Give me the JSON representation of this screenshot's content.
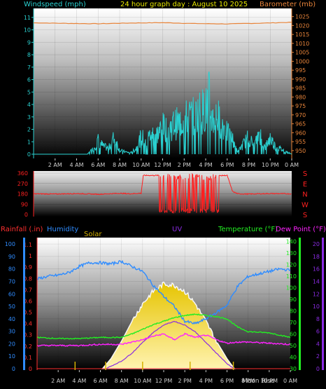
{
  "header": {
    "left": "Windspeed (mph)",
    "center": "24 hour graph day : August 10 2025",
    "right": "Barometer (mb)"
  },
  "colors": {
    "wind": "#2ad0d0",
    "baro": "#e8843a",
    "dir": "#ff2020",
    "rain": "#ff3030",
    "humidity": "#2f8cff",
    "solar": "#d4b000",
    "uv": "#8a2be2",
    "temp": "#22ee22",
    "dew": "#ff22ff",
    "header_title": "#e8e800"
  },
  "x_tick_labels": [
    "2 AM",
    "4 AM",
    "6 AM",
    "8 AM",
    "10 AM",
    "12 PM",
    "2 PM",
    "4 PM",
    "6 PM",
    "8 PM",
    "10 PM",
    "0 AM"
  ],
  "x_tick_labels_bottom": [
    "2 AM",
    "4 AM",
    "6 AM",
    "8 AM",
    "10 AM",
    "12 PM",
    "2 PM",
    "4 PM",
    "6 PM",
    "8 PM",
    "10 PM",
    "0 AM"
  ],
  "moon_label": "Moon Rise",
  "wind_ticks": [
    "0",
    "1",
    "2",
    "3",
    "4",
    "5",
    "6",
    "7",
    "8",
    "9",
    "10",
    "11"
  ],
  "baro_ticks": [
    "950",
    "955",
    "960",
    "965",
    "970",
    "975",
    "980",
    "985",
    "990",
    "995",
    "1000",
    "1005",
    "1010",
    "1015",
    "1020",
    "1025"
  ],
  "dir_ticks": [
    "0",
    "90",
    "180",
    "270",
    "360"
  ],
  "dir_letters": [
    "S",
    "E",
    "N",
    "W",
    "S"
  ],
  "legend": {
    "rain": "Rainfall (.in)",
    "humidity": "Humidity",
    "solar": "Solar",
    "uv": "UV",
    "temp": "Temperature (°F)",
    "dew": "Dew Point (°F)"
  },
  "humidity_ticks": [
    "0",
    "10",
    "20",
    "30",
    "40",
    "50",
    "60",
    "70",
    "80",
    "90",
    "100"
  ],
  "rain_ticks": [
    "0",
    "0.1",
    "0.2",
    "0.3",
    "0.4",
    "0.5",
    "0.6",
    "0.7",
    "0.8",
    "0.9",
    "1",
    "1.1"
  ],
  "temp_ticks": [
    "30",
    "40",
    "50",
    "60",
    "70",
    "80",
    "90",
    "100",
    "110",
    "120",
    "130",
    "140"
  ],
  "uv_ticks": [
    "0",
    "2",
    "4",
    "6",
    "8",
    "10",
    "12",
    "14",
    "16",
    "18",
    "20"
  ],
  "chart_data": [
    {
      "type": "line",
      "x_unit": "hour",
      "xlim": [
        0,
        24
      ],
      "series": [
        {
          "name": "Windspeed (mph)",
          "axis": "left",
          "ylim": [
            0,
            11.5
          ],
          "x": [
            0,
            1,
            2,
            3,
            4,
            5,
            5.5,
            6,
            6.5,
            7,
            7.5,
            8,
            8.5,
            9,
            9.5,
            10,
            10.5,
            11,
            11.5,
            12,
            12.5,
            13,
            13.5,
            14,
            14.5,
            15,
            15.5,
            16,
            16.3,
            16.6,
            17,
            17.5,
            18,
            18.5,
            19,
            19.5,
            20,
            20.5,
            21,
            21.5,
            22,
            22.5,
            23,
            23.5,
            24
          ],
          "y": [
            0,
            0,
            0,
            0,
            0,
            0,
            0.4,
            1.1,
            0.6,
            0.5,
            1.4,
            0.3,
            0.2,
            0.1,
            0.4,
            1.4,
            1.1,
            1.8,
            1.6,
            2.2,
            2.0,
            2.4,
            2.5,
            2.8,
            3.0,
            3.0,
            3.5,
            3.5,
            4.5,
            2.8,
            3.1,
            2.6,
            1.7,
            1.2,
            0.2,
            0.8,
            1.4,
            0.6,
            1.8,
            0.5,
            1.3,
            0.6,
            0.4,
            0.2,
            0
          ]
        },
        {
          "name": "Barometer (mb)",
          "axis": "right",
          "ylim": [
            948,
            1028
          ],
          "x": [
            0,
            3,
            6,
            9,
            12,
            15,
            18,
            21,
            24
          ],
          "y": [
            1021.5,
            1021.2,
            1021.0,
            1021.4,
            1021.6,
            1021.1,
            1020.9,
            1021.3,
            1021.8
          ]
        }
      ]
    },
    {
      "type": "line",
      "name": "Wind Direction",
      "x_unit": "hour",
      "xlim": [
        0,
        24
      ],
      "ylim": [
        0,
        360
      ],
      "x": [
        0,
        2,
        4,
        6,
        8,
        9,
        10,
        10.2,
        12,
        14,
        16,
        17,
        18,
        18.5,
        19,
        20,
        22,
        24
      ],
      "y": [
        180,
        178,
        182,
        176,
        184,
        180,
        185,
        340,
        340,
        345,
        340,
        338,
        340,
        200,
        180,
        178,
        182,
        180
      ],
      "oscillation_range_hours": [
        11.7,
        17.3
      ],
      "oscillation_range_deg": [
        0,
        355
      ]
    },
    {
      "type": "area",
      "x_unit": "hour",
      "xlim": [
        0,
        24
      ],
      "series": [
        {
          "name": "Humidity",
          "axis": "humidity",
          "ylim": [
            0,
            100
          ],
          "x": [
            0,
            1,
            2,
            3,
            4,
            5,
            6,
            7,
            8,
            9,
            10,
            11,
            12,
            13,
            14,
            15,
            16,
            17,
            18,
            19,
            20,
            21,
            22,
            23,
            24
          ],
          "y": [
            72,
            74,
            75,
            77,
            82,
            85,
            85,
            84,
            86,
            82,
            78,
            67,
            58,
            50,
            38,
            36,
            40,
            45,
            51,
            66,
            74,
            76,
            78,
            80,
            79
          ]
        },
        {
          "name": "Temperature (°F)",
          "axis": "temp",
          "ylim": [
            30,
            142
          ],
          "x": [
            0,
            2,
            4,
            6,
            8,
            9,
            10,
            11,
            12,
            13,
            14,
            15,
            16,
            17,
            18,
            19,
            20,
            22,
            24
          ],
          "y": [
            57,
            56,
            56,
            57,
            57,
            60,
            64,
            68,
            71,
            74,
            76,
            77,
            76,
            75,
            73,
            66,
            62,
            61,
            57
          ]
        },
        {
          "name": "Dew Point (°F)",
          "axis": "temp",
          "ylim": [
            30,
            142
          ],
          "x": [
            0,
            2,
            4,
            6,
            8,
            10,
            11,
            12,
            13,
            14,
            15,
            16,
            17,
            18,
            19,
            20,
            22,
            24
          ],
          "y": [
            50,
            50,
            50,
            51,
            51,
            55,
            58,
            60,
            55,
            60,
            57,
            59,
            55,
            52,
            53,
            53,
            52,
            51
          ]
        },
        {
          "name": "Solar",
          "axis": "solar",
          "x": [
            6.2,
            7,
            8,
            9,
            10,
            11,
            12,
            13,
            14,
            15,
            16,
            17,
            18,
            18.7
          ],
          "y": [
            0,
            8,
            22,
            38,
            52,
            62,
            68,
            67,
            62,
            52,
            38,
            22,
            8,
            0
          ]
        },
        {
          "name": "UV",
          "axis": "uv",
          "ylim": [
            0,
            20
          ],
          "x": [
            6.5,
            8,
            9,
            10,
            11,
            12,
            13,
            14,
            15,
            16,
            17,
            18,
            18.7
          ],
          "y": [
            0,
            1.2,
            2.5,
            4.2,
            5.8,
            7.0,
            7.6,
            7.0,
            5.9,
            4.2,
            2.5,
            0.8,
            0
          ]
        },
        {
          "name": "Rainfall (.in)",
          "axis": "rain",
          "ylim": [
            0,
            1.15
          ],
          "x": [
            0,
            24
          ],
          "y": [
            0,
            0
          ]
        }
      ]
    }
  ]
}
